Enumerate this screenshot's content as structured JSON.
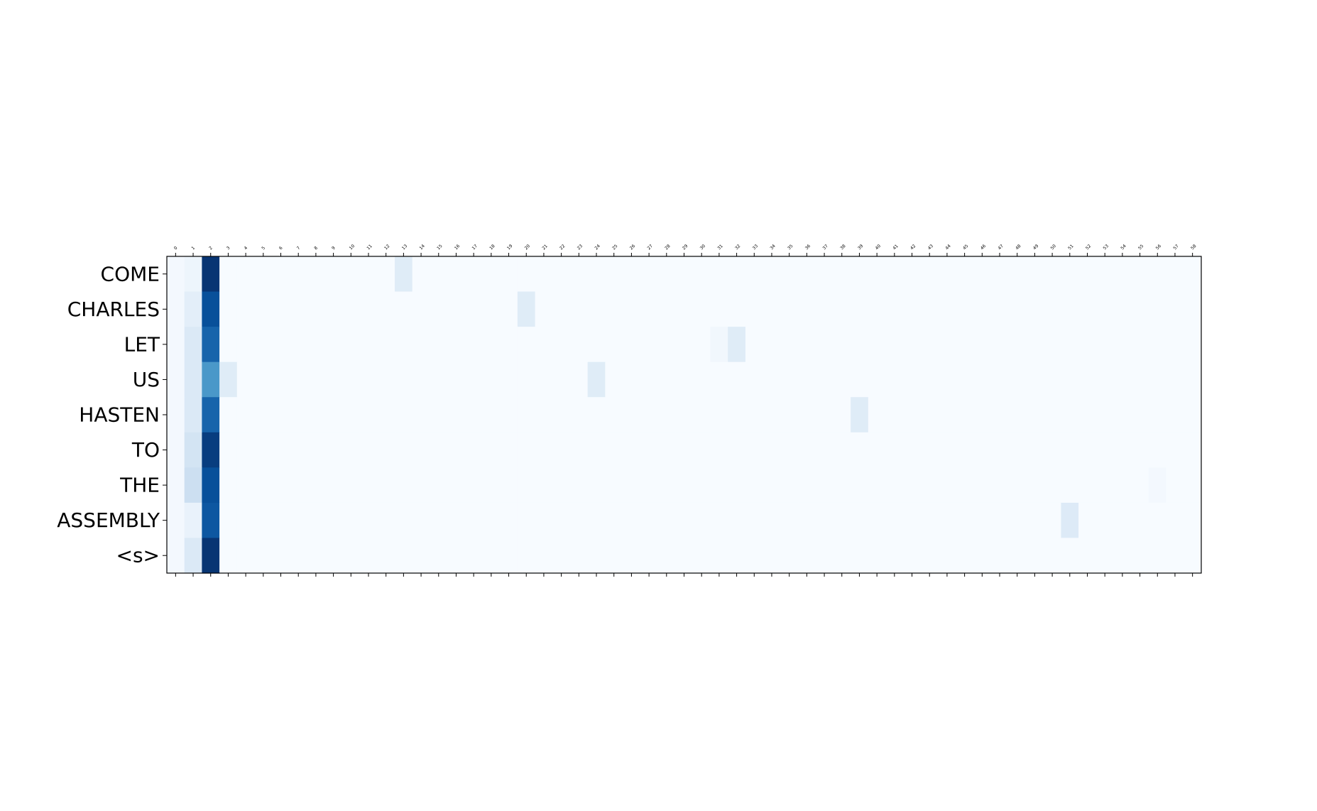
{
  "chart_data": {
    "type": "heatmap",
    "title": "",
    "xlabel": "",
    "ylabel": "",
    "colormap": "Blues",
    "x_categories": [
      "0",
      "1",
      "2",
      "3",
      "4",
      "5",
      "6",
      "7",
      "8",
      "9",
      "10",
      "11",
      "12",
      "13",
      "14",
      "15",
      "16",
      "17",
      "18",
      "19",
      "20",
      "21",
      "22",
      "23",
      "24",
      "25",
      "26",
      "27",
      "28",
      "29",
      "30",
      "31",
      "32",
      "33",
      "34",
      "35",
      "36",
      "37",
      "38",
      "39",
      "40",
      "41",
      "42",
      "43",
      "44",
      "45",
      "46",
      "47",
      "48",
      "49",
      "50",
      "51",
      "52",
      "53",
      "54",
      "55",
      "56",
      "57",
      "58"
    ],
    "y_categories": [
      "COME",
      "CHARLES",
      "LET",
      "US",
      "HASTEN",
      "TO",
      "THE",
      "ASSEMBLY",
      "<s>"
    ],
    "vmin": 0,
    "vmax": 1,
    "values": [
      [
        0.02,
        0.05,
        0.98,
        0,
        0,
        0,
        0,
        0,
        0,
        0,
        0,
        0,
        0,
        0.12,
        0,
        0,
        0,
        0,
        0,
        0,
        0,
        0,
        0,
        0,
        0,
        0,
        0,
        0,
        0,
        0,
        0,
        0,
        0,
        0,
        0,
        0,
        0,
        0,
        0,
        0,
        0,
        0,
        0,
        0,
        0,
        0,
        0,
        0,
        0,
        0,
        0,
        0,
        0,
        0,
        0,
        0,
        0,
        0,
        0
      ],
      [
        0.02,
        0.1,
        0.88,
        0,
        0,
        0,
        0,
        0,
        0,
        0,
        0,
        0,
        0,
        0,
        0,
        0,
        0,
        0,
        0,
        0,
        0.12,
        0,
        0,
        0,
        0,
        0,
        0,
        0,
        0,
        0,
        0,
        0,
        0,
        0,
        0,
        0,
        0,
        0,
        0,
        0,
        0,
        0,
        0,
        0,
        0,
        0,
        0,
        0,
        0,
        0,
        0,
        0,
        0,
        0,
        0,
        0,
        0,
        0,
        0
      ],
      [
        0.02,
        0.14,
        0.8,
        0,
        0,
        0,
        0,
        0,
        0,
        0,
        0,
        0,
        0,
        0,
        0,
        0,
        0,
        0,
        0,
        0,
        0,
        0,
        0,
        0,
        0,
        0,
        0,
        0,
        0,
        0,
        0,
        0.03,
        0.12,
        0,
        0,
        0,
        0,
        0,
        0,
        0,
        0,
        0,
        0,
        0,
        0,
        0,
        0,
        0,
        0,
        0,
        0,
        0,
        0,
        0,
        0,
        0,
        0,
        0,
        0
      ],
      [
        0.02,
        0.14,
        0.6,
        0.12,
        0,
        0,
        0,
        0,
        0,
        0,
        0,
        0,
        0,
        0,
        0,
        0,
        0,
        0,
        0,
        0,
        0,
        0,
        0,
        0,
        0.12,
        0,
        0,
        0,
        0,
        0,
        0,
        0,
        0,
        0,
        0,
        0,
        0,
        0,
        0,
        0,
        0,
        0,
        0,
        0,
        0,
        0,
        0,
        0,
        0,
        0,
        0,
        0,
        0,
        0,
        0,
        0,
        0,
        0,
        0
      ],
      [
        0.02,
        0.14,
        0.8,
        0,
        0,
        0,
        0,
        0,
        0,
        0,
        0,
        0,
        0,
        0,
        0,
        0,
        0,
        0,
        0,
        0,
        0,
        0,
        0,
        0,
        0,
        0,
        0,
        0,
        0,
        0,
        0,
        0,
        0,
        0,
        0,
        0,
        0,
        0,
        0,
        0.12,
        0,
        0,
        0,
        0,
        0,
        0,
        0,
        0,
        0,
        0,
        0,
        0,
        0,
        0,
        0,
        0,
        0,
        0,
        0
      ],
      [
        0.02,
        0.18,
        0.95,
        0,
        0,
        0,
        0,
        0,
        0,
        0,
        0,
        0,
        0,
        0,
        0,
        0,
        0,
        0,
        0,
        0,
        0,
        0,
        0,
        0,
        0,
        0,
        0,
        0,
        0,
        0,
        0,
        0,
        0,
        0,
        0,
        0,
        0,
        0,
        0,
        0,
        0,
        0,
        0,
        0,
        0,
        0,
        0,
        0,
        0,
        0,
        0,
        0,
        0,
        0,
        0,
        0,
        0,
        0,
        0
      ],
      [
        0.02,
        0.22,
        0.88,
        0,
        0,
        0,
        0,
        0,
        0,
        0,
        0,
        0,
        0,
        0,
        0,
        0,
        0,
        0,
        0,
        0,
        0,
        0,
        0,
        0,
        0,
        0,
        0,
        0,
        0,
        0,
        0,
        0,
        0,
        0,
        0,
        0,
        0,
        0,
        0,
        0,
        0,
        0,
        0,
        0,
        0,
        0,
        0,
        0,
        0,
        0,
        0,
        0,
        0,
        0,
        0,
        0,
        0.02,
        0,
        0
      ],
      [
        0.02,
        0.07,
        0.85,
        0,
        0,
        0,
        0,
        0,
        0,
        0,
        0,
        0,
        0,
        0,
        0,
        0,
        0,
        0,
        0,
        0,
        0,
        0,
        0,
        0,
        0,
        0,
        0,
        0,
        0,
        0,
        0,
        0,
        0,
        0,
        0,
        0,
        0,
        0,
        0,
        0,
        0,
        0,
        0,
        0,
        0,
        0,
        0,
        0,
        0,
        0,
        0,
        0.13,
        0,
        0,
        0,
        0,
        0,
        0,
        0
      ],
      [
        0.02,
        0.14,
        0.98,
        0,
        0,
        0,
        0,
        0,
        0,
        0,
        0,
        0,
        0,
        0,
        0,
        0,
        0,
        0,
        0,
        0,
        0,
        0,
        0,
        0,
        0,
        0,
        0,
        0,
        0,
        0,
        0,
        0,
        0,
        0,
        0,
        0,
        0,
        0,
        0,
        0,
        0,
        0,
        0,
        0,
        0,
        0,
        0,
        0,
        0,
        0,
        0,
        0,
        0,
        0,
        0,
        0,
        0,
        0,
        0
      ]
    ]
  }
}
